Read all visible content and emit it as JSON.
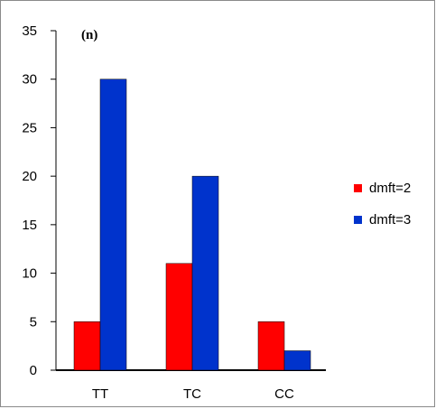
{
  "chart_data": {
    "type": "bar",
    "panel_label": "(n)",
    "categories": [
      "TT",
      "TC",
      "CC"
    ],
    "series": [
      {
        "name": "dmft=2",
        "values": [
          5,
          11,
          5
        ],
        "color": "#ff0000"
      },
      {
        "name": "dmft=3",
        "values": [
          30,
          20,
          2
        ],
        "color": "#0033cc"
      }
    ],
    "ylim": [
      0,
      35
    ],
    "yticks": [
      0,
      5,
      10,
      15,
      20,
      25,
      30,
      35
    ],
    "grid": false,
    "legend_position": "right"
  }
}
